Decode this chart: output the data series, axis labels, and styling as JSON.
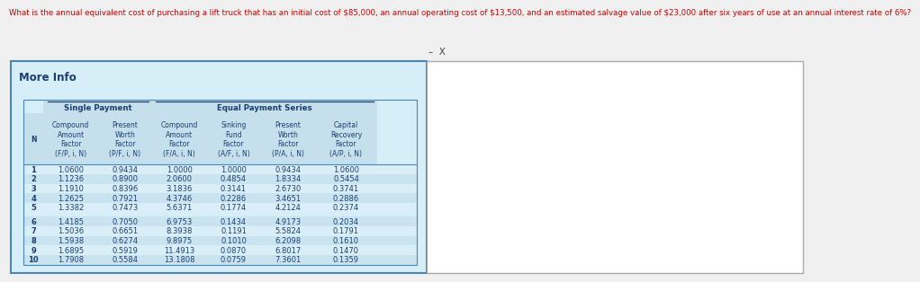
{
  "question": "What is the annual equivalent cost of purchasing a lift truck that has an initial cost of $85,000, an annual operating cost of $13,500, and an estimated salvage value of $23,000 after six years of use at an annual interest rate of 6%?",
  "more_info_label": "More Info",
  "close_symbol": "–  X",
  "header_single": "Single Payment",
  "header_equal": "Equal Payment Series",
  "rows": [
    [
      1,
      "1.0600",
      "0.9434",
      "1.0000",
      "1.0000",
      "0.9434",
      "1.0600"
    ],
    [
      2,
      "1.1236",
      "0.8900",
      "2.0600",
      "0.4854",
      "1.8334",
      "0.5454"
    ],
    [
      3,
      "1.1910",
      "0.8396",
      "3.1836",
      "0.3141",
      "2.6730",
      "0.3741"
    ],
    [
      4,
      "1.2625",
      "0.7921",
      "4.3746",
      "0.2286",
      "3.4651",
      "0.2886"
    ],
    [
      5,
      "1.3382",
      "0.7473",
      "5.6371",
      "0.1774",
      "4.2124",
      "0.2374"
    ],
    [
      6,
      "1.4185",
      "0.7050",
      "6.9753",
      "0.1434",
      "4.9173",
      "0.2034"
    ],
    [
      7,
      "1.5036",
      "0.6651",
      "8.3938",
      "0.1191",
      "5.5824",
      "0.1791"
    ],
    [
      8,
      "1.5938",
      "0.6274",
      "9.8975",
      "0.1010",
      "6.2098",
      "0.1610"
    ],
    [
      9,
      "1.6895",
      "0.5919",
      "11.4913",
      "0.0870",
      "6.8017",
      "0.1470"
    ],
    [
      10,
      "1.7908",
      "0.5584",
      "13.1808",
      "0.0759",
      "7.3601",
      "0.1359"
    ]
  ],
  "bg_outer": "#f0f0f0",
  "bg_box": "#d6eef7",
  "bg_header": "#c5e0ec",
  "bg_row_a": "#daeef7",
  "bg_row_b": "#c9e4f0",
  "text_question": "#cc0000",
  "text_header": "#1a3f6f",
  "text_data": "#1a3f6f",
  "text_more_info": "#1a3f6f",
  "border_box": "#4a86b8",
  "border_table": "#4a86b8",
  "close_color": "#444444"
}
